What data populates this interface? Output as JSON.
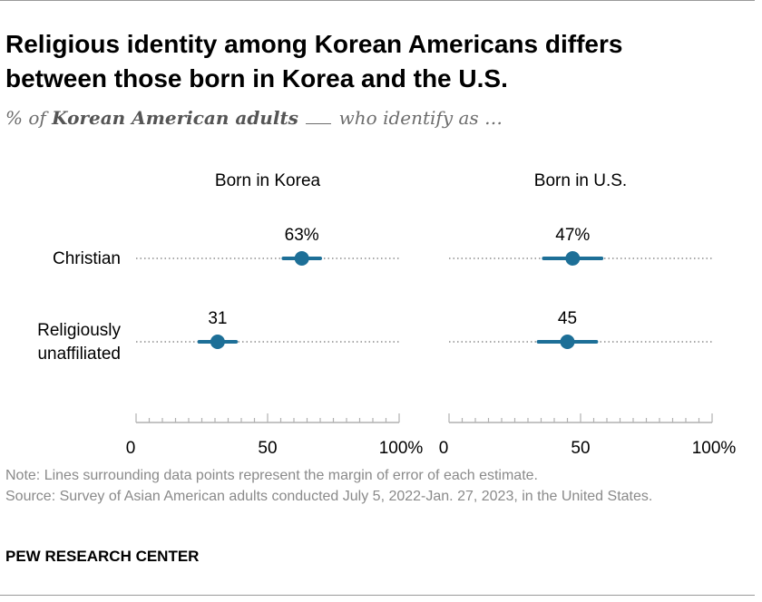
{
  "header": {
    "title": "Religious identity among Korean Americans differs between those born in Korea and the U.S.",
    "subtitle_prefix": "% of ",
    "subtitle_bold": "Korean American adults",
    "subtitle_suffix": " who identify as …"
  },
  "footer": {
    "note": "Note: Lines surrounding data points represent the margin of error of each estimate.",
    "source": "Source: Survey of Asian American adults conducted July 5, 2022-Jan. 27, 2023, in the United States.",
    "brand": "PEW RESEARCH CENTER"
  },
  "colors": {
    "series": "#1d6f97",
    "dotted": "#8c8c8c",
    "axis": "#b0b0b0"
  },
  "chart_data": {
    "type": "scatter",
    "subtype": "dot plot with error bars",
    "categories": [
      "Christian",
      "Religiously unaffiliated"
    ],
    "category_labels": [
      [
        "Christian"
      ],
      [
        "Religiously",
        "unaffiliated"
      ]
    ],
    "panels": [
      {
        "title": "Born in Korea",
        "values": [
          63,
          31
        ],
        "value_labels": [
          "63%",
          "31"
        ],
        "error_low": [
          56,
          24
        ],
        "error_high": [
          70,
          38
        ]
      },
      {
        "title": "Born in U.S.",
        "values": [
          47,
          45
        ],
        "value_labels": [
          "47%",
          "45"
        ],
        "error_low": [
          36,
          34
        ],
        "error_high": [
          58,
          56
        ]
      }
    ],
    "xlim": [
      0,
      100
    ],
    "xticks": [
      0,
      50,
      100
    ],
    "xtick_labels": [
      "0",
      "50",
      "100%"
    ],
    "grid": false
  }
}
